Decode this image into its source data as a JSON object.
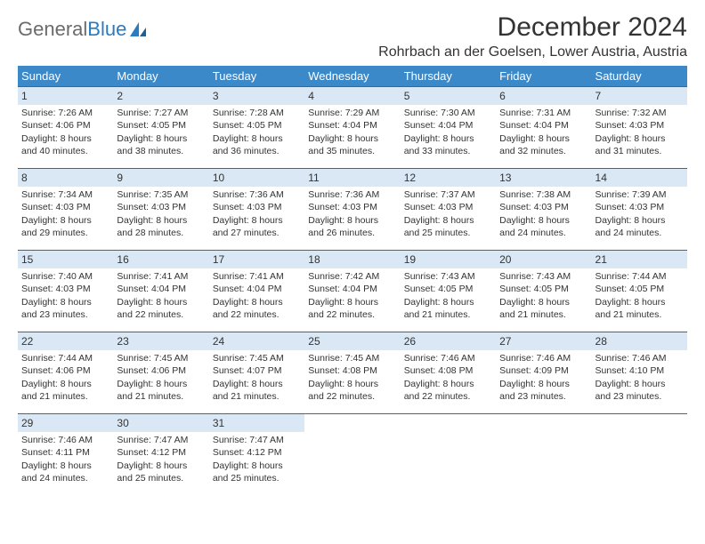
{
  "logo": {
    "text1": "General",
    "text2": "Blue"
  },
  "title": "December 2024",
  "subtitle": "Rohrbach an der Goelsen, Lower Austria, Austria",
  "colors": {
    "header_bg": "#3b89c9",
    "header_text": "#ffffff",
    "daynum_bg": "#d9e8f4",
    "row_divider": "#2c6ca3",
    "logo_gray": "#6b6b6b",
    "logo_blue": "#2b7bbf",
    "text": "#333333",
    "background": "#ffffff"
  },
  "weekdays": [
    "Sunday",
    "Monday",
    "Tuesday",
    "Wednesday",
    "Thursday",
    "Friday",
    "Saturday"
  ],
  "weeks": [
    [
      {
        "day": "1",
        "sunrise": "Sunrise: 7:26 AM",
        "sunset": "Sunset: 4:06 PM",
        "dl1": "Daylight: 8 hours",
        "dl2": "and 40 minutes."
      },
      {
        "day": "2",
        "sunrise": "Sunrise: 7:27 AM",
        "sunset": "Sunset: 4:05 PM",
        "dl1": "Daylight: 8 hours",
        "dl2": "and 38 minutes."
      },
      {
        "day": "3",
        "sunrise": "Sunrise: 7:28 AM",
        "sunset": "Sunset: 4:05 PM",
        "dl1": "Daylight: 8 hours",
        "dl2": "and 36 minutes."
      },
      {
        "day": "4",
        "sunrise": "Sunrise: 7:29 AM",
        "sunset": "Sunset: 4:04 PM",
        "dl1": "Daylight: 8 hours",
        "dl2": "and 35 minutes."
      },
      {
        "day": "5",
        "sunrise": "Sunrise: 7:30 AM",
        "sunset": "Sunset: 4:04 PM",
        "dl1": "Daylight: 8 hours",
        "dl2": "and 33 minutes."
      },
      {
        "day": "6",
        "sunrise": "Sunrise: 7:31 AM",
        "sunset": "Sunset: 4:04 PM",
        "dl1": "Daylight: 8 hours",
        "dl2": "and 32 minutes."
      },
      {
        "day": "7",
        "sunrise": "Sunrise: 7:32 AM",
        "sunset": "Sunset: 4:03 PM",
        "dl1": "Daylight: 8 hours",
        "dl2": "and 31 minutes."
      }
    ],
    [
      {
        "day": "8",
        "sunrise": "Sunrise: 7:34 AM",
        "sunset": "Sunset: 4:03 PM",
        "dl1": "Daylight: 8 hours",
        "dl2": "and 29 minutes."
      },
      {
        "day": "9",
        "sunrise": "Sunrise: 7:35 AM",
        "sunset": "Sunset: 4:03 PM",
        "dl1": "Daylight: 8 hours",
        "dl2": "and 28 minutes."
      },
      {
        "day": "10",
        "sunrise": "Sunrise: 7:36 AM",
        "sunset": "Sunset: 4:03 PM",
        "dl1": "Daylight: 8 hours",
        "dl2": "and 27 minutes."
      },
      {
        "day": "11",
        "sunrise": "Sunrise: 7:36 AM",
        "sunset": "Sunset: 4:03 PM",
        "dl1": "Daylight: 8 hours",
        "dl2": "and 26 minutes."
      },
      {
        "day": "12",
        "sunrise": "Sunrise: 7:37 AM",
        "sunset": "Sunset: 4:03 PM",
        "dl1": "Daylight: 8 hours",
        "dl2": "and 25 minutes."
      },
      {
        "day": "13",
        "sunrise": "Sunrise: 7:38 AM",
        "sunset": "Sunset: 4:03 PM",
        "dl1": "Daylight: 8 hours",
        "dl2": "and 24 minutes."
      },
      {
        "day": "14",
        "sunrise": "Sunrise: 7:39 AM",
        "sunset": "Sunset: 4:03 PM",
        "dl1": "Daylight: 8 hours",
        "dl2": "and 24 minutes."
      }
    ],
    [
      {
        "day": "15",
        "sunrise": "Sunrise: 7:40 AM",
        "sunset": "Sunset: 4:03 PM",
        "dl1": "Daylight: 8 hours",
        "dl2": "and 23 minutes."
      },
      {
        "day": "16",
        "sunrise": "Sunrise: 7:41 AM",
        "sunset": "Sunset: 4:04 PM",
        "dl1": "Daylight: 8 hours",
        "dl2": "and 22 minutes."
      },
      {
        "day": "17",
        "sunrise": "Sunrise: 7:41 AM",
        "sunset": "Sunset: 4:04 PM",
        "dl1": "Daylight: 8 hours",
        "dl2": "and 22 minutes."
      },
      {
        "day": "18",
        "sunrise": "Sunrise: 7:42 AM",
        "sunset": "Sunset: 4:04 PM",
        "dl1": "Daylight: 8 hours",
        "dl2": "and 22 minutes."
      },
      {
        "day": "19",
        "sunrise": "Sunrise: 7:43 AM",
        "sunset": "Sunset: 4:05 PM",
        "dl1": "Daylight: 8 hours",
        "dl2": "and 21 minutes."
      },
      {
        "day": "20",
        "sunrise": "Sunrise: 7:43 AM",
        "sunset": "Sunset: 4:05 PM",
        "dl1": "Daylight: 8 hours",
        "dl2": "and 21 minutes."
      },
      {
        "day": "21",
        "sunrise": "Sunrise: 7:44 AM",
        "sunset": "Sunset: 4:05 PM",
        "dl1": "Daylight: 8 hours",
        "dl2": "and 21 minutes."
      }
    ],
    [
      {
        "day": "22",
        "sunrise": "Sunrise: 7:44 AM",
        "sunset": "Sunset: 4:06 PM",
        "dl1": "Daylight: 8 hours",
        "dl2": "and 21 minutes."
      },
      {
        "day": "23",
        "sunrise": "Sunrise: 7:45 AM",
        "sunset": "Sunset: 4:06 PM",
        "dl1": "Daylight: 8 hours",
        "dl2": "and 21 minutes."
      },
      {
        "day": "24",
        "sunrise": "Sunrise: 7:45 AM",
        "sunset": "Sunset: 4:07 PM",
        "dl1": "Daylight: 8 hours",
        "dl2": "and 21 minutes."
      },
      {
        "day": "25",
        "sunrise": "Sunrise: 7:45 AM",
        "sunset": "Sunset: 4:08 PM",
        "dl1": "Daylight: 8 hours",
        "dl2": "and 22 minutes."
      },
      {
        "day": "26",
        "sunrise": "Sunrise: 7:46 AM",
        "sunset": "Sunset: 4:08 PM",
        "dl1": "Daylight: 8 hours",
        "dl2": "and 22 minutes."
      },
      {
        "day": "27",
        "sunrise": "Sunrise: 7:46 AM",
        "sunset": "Sunset: 4:09 PM",
        "dl1": "Daylight: 8 hours",
        "dl2": "and 23 minutes."
      },
      {
        "day": "28",
        "sunrise": "Sunrise: 7:46 AM",
        "sunset": "Sunset: 4:10 PM",
        "dl1": "Daylight: 8 hours",
        "dl2": "and 23 minutes."
      }
    ],
    [
      {
        "day": "29",
        "sunrise": "Sunrise: 7:46 AM",
        "sunset": "Sunset: 4:11 PM",
        "dl1": "Daylight: 8 hours",
        "dl2": "and 24 minutes."
      },
      {
        "day": "30",
        "sunrise": "Sunrise: 7:47 AM",
        "sunset": "Sunset: 4:12 PM",
        "dl1": "Daylight: 8 hours",
        "dl2": "and 25 minutes."
      },
      {
        "day": "31",
        "sunrise": "Sunrise: 7:47 AM",
        "sunset": "Sunset: 4:12 PM",
        "dl1": "Daylight: 8 hours",
        "dl2": "and 25 minutes."
      },
      {
        "empty": true
      },
      {
        "empty": true
      },
      {
        "empty": true
      },
      {
        "empty": true
      }
    ]
  ]
}
